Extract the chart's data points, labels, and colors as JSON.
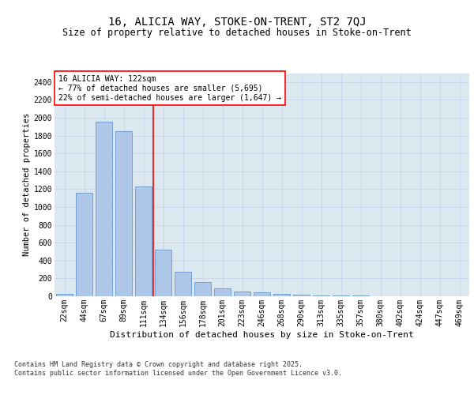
{
  "title1": "16, ALICIA WAY, STOKE-ON-TRENT, ST2 7QJ",
  "title2": "Size of property relative to detached houses in Stoke-on-Trent",
  "xlabel": "Distribution of detached houses by size in Stoke-on-Trent",
  "ylabel": "Number of detached properties",
  "categories": [
    "22sqm",
    "44sqm",
    "67sqm",
    "89sqm",
    "111sqm",
    "134sqm",
    "156sqm",
    "178sqm",
    "201sqm",
    "223sqm",
    "246sqm",
    "268sqm",
    "290sqm",
    "313sqm",
    "335sqm",
    "357sqm",
    "380sqm",
    "402sqm",
    "424sqm",
    "447sqm",
    "469sqm"
  ],
  "values": [
    25,
    1160,
    1960,
    1850,
    1230,
    520,
    275,
    155,
    90,
    50,
    40,
    25,
    15,
    10,
    5,
    5,
    2,
    2,
    1,
    1,
    0
  ],
  "bar_color": "#aec6e8",
  "bar_edge_color": "#6699cc",
  "vline_x": 4.5,
  "vline_color": "red",
  "annotation_text": "16 ALICIA WAY: 122sqm\n← 77% of detached houses are smaller (5,695)\n22% of semi-detached houses are larger (1,647) →",
  "annotation_box_color": "white",
  "annotation_box_edge_color": "red",
  "ylim": [
    0,
    2500
  ],
  "yticks": [
    0,
    200,
    400,
    600,
    800,
    1000,
    1200,
    1400,
    1600,
    1800,
    2000,
    2200,
    2400
  ],
  "grid_color": "#c8d4e8",
  "bg_color": "#dce8f0",
  "footer": "Contains HM Land Registry data © Crown copyright and database right 2025.\nContains public sector information licensed under the Open Government Licence v3.0.",
  "title_fontsize": 10,
  "subtitle_fontsize": 8.5,
  "xlabel_fontsize": 8,
  "ylabel_fontsize": 7.5,
  "tick_fontsize": 7,
  "annot_fontsize": 7,
  "footer_fontsize": 6
}
